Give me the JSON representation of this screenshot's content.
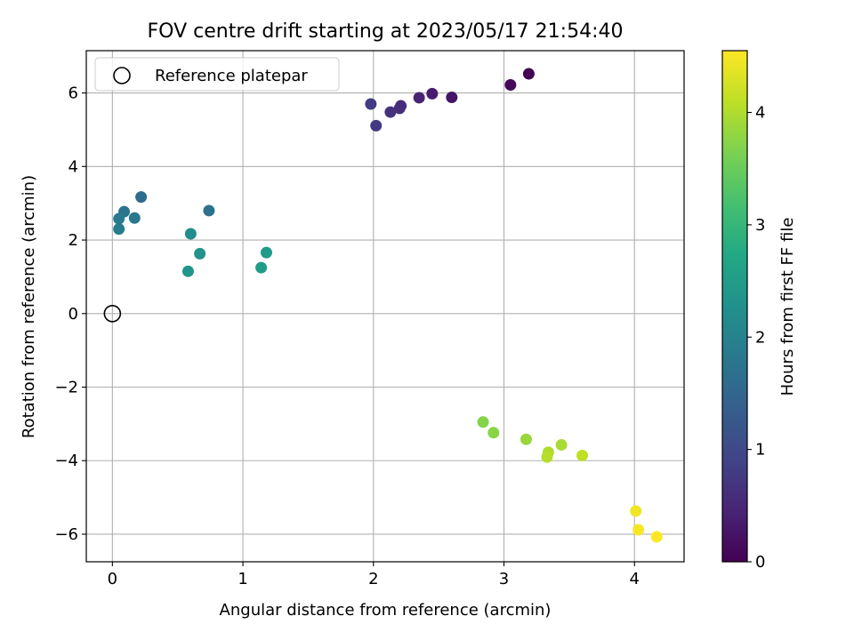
{
  "chart_data": {
    "type": "scatter",
    "title": "FOV centre drift starting at 2023/05/17 21:54:40",
    "xlabel": "Angular distance from reference (arcmin)",
    "ylabel": "Rotation from reference (arcmin)",
    "xlim": [
      -0.2,
      4.38
    ],
    "ylim": [
      -6.75,
      7.15
    ],
    "xticks": [
      0,
      1,
      2,
      3,
      4
    ],
    "yticks": [
      -6,
      -4,
      -2,
      0,
      2,
      4,
      6
    ],
    "xtick_labels": [
      "0",
      "1",
      "2",
      "3",
      "4"
    ],
    "ytick_labels": [
      "−6",
      "−4",
      "−2",
      "0",
      "2",
      "4",
      "6"
    ],
    "grid": true,
    "legend": {
      "position": "top-left",
      "entries": [
        "Reference platepar"
      ]
    },
    "reference_point": {
      "x": 0,
      "y": 0
    },
    "colorbar": {
      "label": "Hours from first FF file",
      "range": [
        0,
        4.55
      ],
      "ticks": [
        0,
        1,
        2,
        3,
        4
      ],
      "tick_labels": [
        "0",
        "1",
        "2",
        "3",
        "4"
      ],
      "colormap": "viridis"
    },
    "points": [
      {
        "x": 3.19,
        "y": 6.52,
        "hours": 0.0
      },
      {
        "x": 3.05,
        "y": 6.22,
        "hours": 0.1
      },
      {
        "x": 2.6,
        "y": 5.88,
        "hours": 0.25
      },
      {
        "x": 2.45,
        "y": 5.98,
        "hours": 0.35
      },
      {
        "x": 2.35,
        "y": 5.87,
        "hours": 0.45
      },
      {
        "x": 2.21,
        "y": 5.65,
        "hours": 0.55
      },
      {
        "x": 2.2,
        "y": 5.58,
        "hours": 0.6
      },
      {
        "x": 2.13,
        "y": 5.48,
        "hours": 0.65
      },
      {
        "x": 2.02,
        "y": 5.11,
        "hours": 0.75
      },
      {
        "x": 1.98,
        "y": 5.7,
        "hours": 0.8
      },
      {
        "x": 0.22,
        "y": 3.17,
        "hours": 1.6
      },
      {
        "x": 0.74,
        "y": 2.8,
        "hours": 1.7
      },
      {
        "x": 0.09,
        "y": 2.77,
        "hours": 1.75
      },
      {
        "x": 0.17,
        "y": 2.6,
        "hours": 1.8
      },
      {
        "x": 0.05,
        "y": 2.58,
        "hours": 1.85
      },
      {
        "x": 0.05,
        "y": 2.3,
        "hours": 1.9
      },
      {
        "x": 0.6,
        "y": 2.17,
        "hours": 2.2
      },
      {
        "x": 0.67,
        "y": 1.63,
        "hours": 2.3
      },
      {
        "x": 0.58,
        "y": 1.15,
        "hours": 2.35
      },
      {
        "x": 1.18,
        "y": 1.66,
        "hours": 2.45
      },
      {
        "x": 1.14,
        "y": 1.25,
        "hours": 2.5
      },
      {
        "x": 2.84,
        "y": -2.95,
        "hours": 3.7
      },
      {
        "x": 2.92,
        "y": -3.24,
        "hours": 3.75
      },
      {
        "x": 3.17,
        "y": -3.42,
        "hours": 3.85
      },
      {
        "x": 3.44,
        "y": -3.57,
        "hours": 3.95
      },
      {
        "x": 3.34,
        "y": -3.77,
        "hours": 4.0
      },
      {
        "x": 3.33,
        "y": -3.9,
        "hours": 4.05
      },
      {
        "x": 3.6,
        "y": -3.86,
        "hours": 4.1
      },
      {
        "x": 4.01,
        "y": -5.37,
        "hours": 4.45
      },
      {
        "x": 4.03,
        "y": -5.88,
        "hours": 4.5
      },
      {
        "x": 4.17,
        "y": -6.07,
        "hours": 4.55
      }
    ]
  }
}
